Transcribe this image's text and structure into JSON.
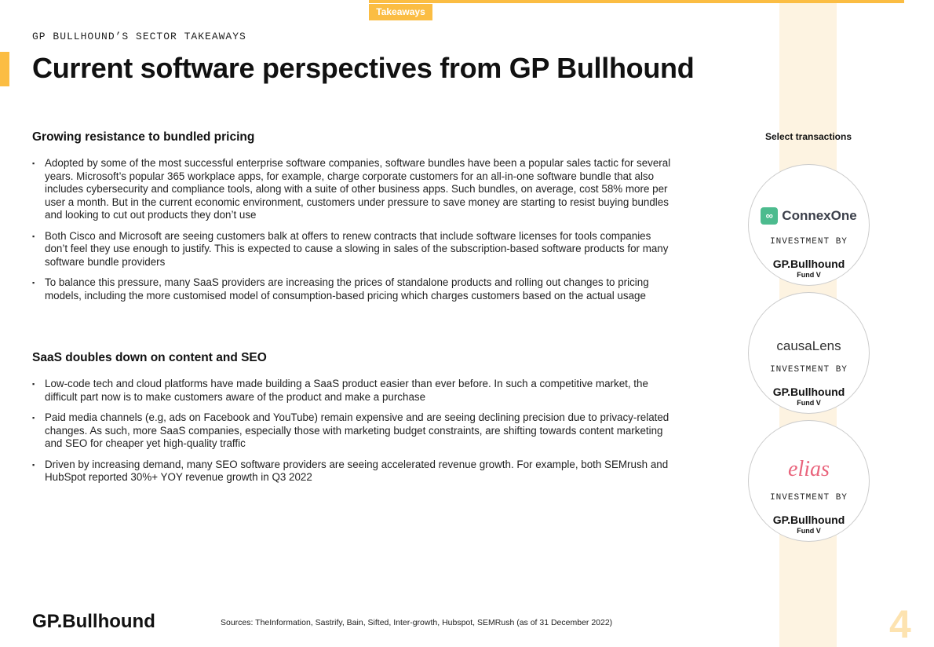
{
  "header": {
    "tab_label": "Takeaways",
    "kicker": "GP BULLHOUND’S SECTOR TAKEAWAYS",
    "title": "Current software perspectives from GP Bullhound"
  },
  "sections": [
    {
      "heading": "Growing resistance to bundled pricing",
      "bullets": [
        "Adopted by some of the most successful enterprise software companies, software bundles have been a popular sales tactic for several years. Microsoft’s popular 365 workplace apps, for example, charge corporate customers for an all-in-one software bundle that also includes cybersecurity and compliance tools, along with a suite of other business apps. Such bundles, on average, cost 58% more per user a month. But in the current economic environment, customers under pressure to save money are starting to resist buying bundles and looking to cut out products they don’t use",
        "Both Cisco and Microsoft are seeing customers balk at offers to renew contracts that include software licenses for tools companies don’t feel they use enough to justify. This is expected to cause a slowing in sales of the subscription-based software products for many software bundle providers",
        "To balance this pressure, many SaaS providers are increasing the prices of standalone products and rolling out changes to pricing models, including the more customised model of consumption-based pricing which charges customers based on the actual usage"
      ]
    },
    {
      "heading": "SaaS doubles down on content and SEO",
      "bullets": [
        "Low-code tech and cloud platforms have made building a SaaS product easier than ever before. In such a competitive market, the difficult part now is to make customers aware of the product and make a purchase",
        "Paid media channels (e.g, ads on Facebook and YouTube) remain expensive and are seeing declining precision due to privacy-related changes. As such, more SaaS companies, especially those with marketing budget constraints, are shifting towards content marketing and SEO for cheaper yet high-quality traffic",
        "Driven by increasing demand, many SEO software providers are seeing accelerated revenue growth. For example, both SEMrush and HubSpot reported 30%+ YOY revenue growth in Q3 2022"
      ]
    }
  ],
  "sidebar": {
    "title": "Select transactions",
    "transactions": [
      {
        "company": "ConnexOne",
        "investment_label": "INVESTMENT BY",
        "investor": "GP.Bullhound",
        "fund": "Fund V"
      },
      {
        "company": "causaLens",
        "investment_label": "INVESTMENT BY",
        "investor": "GP.Bullhound",
        "fund": "Fund V"
      },
      {
        "company": "elias",
        "investment_label": "INVESTMENT BY",
        "investor": "GP.Bullhound",
        "fund": "Fund V"
      }
    ]
  },
  "footer": {
    "logo": "GP.Bullhound",
    "sources": "Sources: TheInformation, Sastrify, Bain, Sifted, Inter-growth, Hubspot, SEMRush (as of 31 December 2022)",
    "page_number": "4"
  },
  "colors": {
    "accent": "#fbbd43",
    "beige": "#fdf3e1",
    "connex": "#4cbb8e",
    "elias": "#e9647c"
  }
}
